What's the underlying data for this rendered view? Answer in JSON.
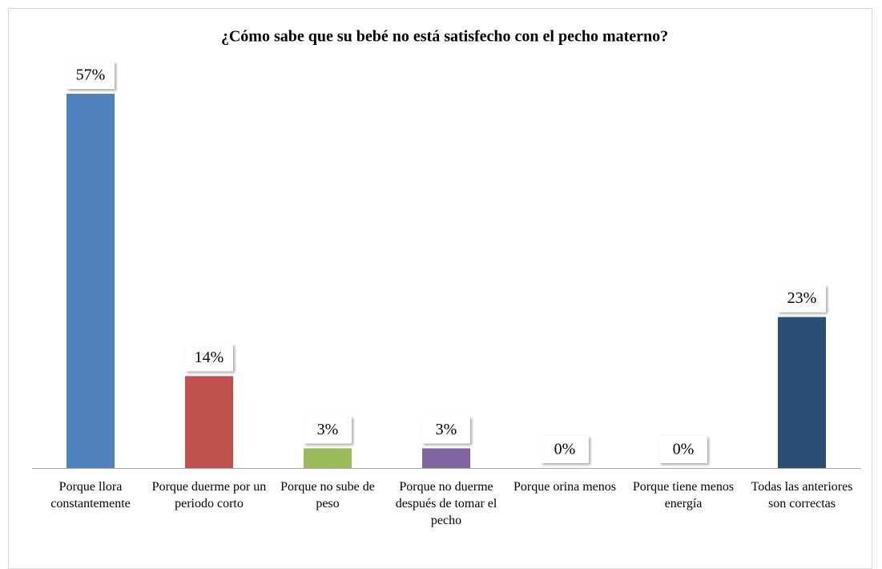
{
  "chart_data": {
    "type": "bar",
    "title": "¿Cómo sabe que su bebé no está satisfecho con el pecho materno?",
    "categories": [
      "Porque llora constantemente",
      "Porque duerme por un periodo corto",
      "Porque no sube de peso",
      "Porque no duerme después de tomar el pecho",
      "Porque orina menos",
      "Porque tiene menos energía",
      "Todas las anteriores son correctas"
    ],
    "values": [
      57,
      14,
      3,
      3,
      0,
      0,
      23
    ],
    "value_labels": [
      "57%",
      "14%",
      "3%",
      "3%",
      "0%",
      "0%",
      "23%"
    ],
    "colors": [
      "#4f81bd",
      "#c0504d",
      "#9bbb59",
      "#8064a2",
      "#4bacc6",
      "#f79646",
      "#2c4d75"
    ]
  }
}
